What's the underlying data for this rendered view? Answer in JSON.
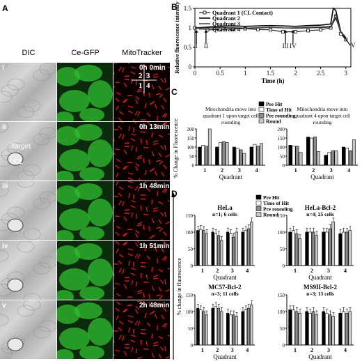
{
  "panels": {
    "A": "A",
    "B": "B",
    "C": "C",
    "D": "D"
  },
  "panelA": {
    "columns": [
      "DIC",
      "Ce-GFP",
      "MitoTracker"
    ],
    "rows": [
      {
        "label": "i",
        "time": "0h 0min"
      },
      {
        "label": "ii",
        "time": "0h 13min"
      },
      {
        "label": "iii",
        "time": "1h 48min"
      },
      {
        "label": "iv",
        "time": "1h 51min"
      },
      {
        "label": "v",
        "time": "2h 48min"
      }
    ],
    "target_label": "Target",
    "cl_label": "CL",
    "quadrant_labels": [
      "2",
      "3",
      "1",
      "4"
    ]
  },
  "colors": {
    "gfp": "#2fbf2f",
    "mito": "#e8261c",
    "dic": "#c4c4c4"
  },
  "chart_data": [
    {
      "id": "B",
      "type": "line",
      "xlabel": "Time (h)",
      "ylabel": "Relative fluorescence intensity",
      "xlim": [
        0,
        3.1
      ],
      "ylim": [
        0,
        1.5
      ],
      "xticks": [
        "0",
        "0.5",
        "1",
        "1.5",
        "2",
        "2.5",
        "3"
      ],
      "yticks": [
        "0",
        "0.5",
        "1",
        "1.5"
      ],
      "legend": [
        "Quadrant 1 (CL Contact)",
        "Quadrant 2",
        "Quadrant 3",
        "Quadrant 4"
      ],
      "legend_position": "top-left",
      "series": [
        {
          "name": "Quadrant 1 (CL Contact)",
          "x": [
            0,
            0.25,
            0.5,
            0.75,
            1.0,
            1.25,
            1.5,
            1.75,
            2.0,
            2.25,
            2.5,
            2.7,
            2.8,
            2.9,
            3.0
          ],
          "y": [
            1.0,
            0.95,
            0.96,
            0.97,
            0.98,
            0.96,
            0.95,
            0.9,
            0.9,
            0.93,
            0.95,
            1.0,
            1.3,
            0.85,
            0.7
          ]
        },
        {
          "name": "Quadrant 2",
          "x": [
            0,
            0.25,
            0.5,
            0.75,
            1.0,
            1.25,
            1.5,
            1.75,
            2.0,
            2.25,
            2.5,
            2.7,
            2.75,
            2.8,
            2.9,
            3.0
          ],
          "y": [
            1.0,
            1.02,
            1.04,
            1.05,
            1.04,
            1.05,
            1.06,
            1.05,
            1.04,
            1.06,
            1.07,
            1.1,
            1.5,
            1.45,
            0.9,
            0.75
          ]
        },
        {
          "name": "Quadrant 3",
          "x": [
            0,
            0.25,
            0.5,
            0.75,
            1.0,
            1.25,
            1.5,
            1.75,
            2.0,
            2.25,
            2.5,
            2.7,
            2.8,
            2.9,
            3.0
          ],
          "y": [
            1.0,
            1.0,
            1.01,
            1.0,
            0.99,
            1.0,
            1.01,
            1.0,
            0.99,
            1.0,
            1.01,
            1.02,
            1.25,
            0.9,
            0.72
          ]
        },
        {
          "name": "Quadrant 4",
          "x": [
            0,
            0.25,
            0.5,
            0.75,
            1.0,
            1.25,
            1.5,
            1.75,
            2.0,
            2.25,
            2.5,
            2.7,
            2.8,
            2.9,
            3.0
          ],
          "y": [
            0.98,
            0.99,
            1.0,
            1.01,
            1.0,
            1.01,
            1.02,
            1.0,
            1.01,
            1.02,
            1.03,
            1.05,
            1.35,
            0.88,
            0.74
          ]
        }
      ],
      "annotations": [
        {
          "text": "I",
          "x": 0.03
        },
        {
          "text": "II",
          "x": 0.22
        },
        {
          "text": "III",
          "x": 1.8
        },
        {
          "text": "IV",
          "x": 1.95
        },
        {
          "text": "V",
          "x": 2.95
        }
      ]
    },
    {
      "id": "C",
      "type": "bar",
      "ylabel": "% Change in Fluorescence",
      "xlabel": "Quadrant",
      "ylim": [
        0,
        200
      ],
      "yticks": [
        "0",
        "50",
        "100",
        "150",
        "200"
      ],
      "categories": [
        "1",
        "2",
        "3",
        "4"
      ],
      "legend": [
        "Pre Hit",
        "Time of Hit",
        "Pre rounding",
        "Round"
      ],
      "legend_position": "top",
      "subcharts": [
        {
          "title": "Mitochondria move into quadrant 1 upon target cell rounding",
          "series": [
            {
              "name": "Pre Hit",
              "values": [
                100,
                100,
                100,
                100
              ]
            },
            {
              "name": "Time of Hit",
              "values": [
                110,
                125,
                95,
                115
              ]
            },
            {
              "name": "Pre rounding",
              "values": [
                105,
                130,
                85,
                105
              ]
            },
            {
              "name": "Round",
              "values": [
                200,
                125,
                65,
                120
              ]
            }
          ]
        },
        {
          "title": "Mitochondria move into quadrant 4 upon target cell rounding",
          "series": [
            {
              "name": "Pre Hit",
              "values": [
                110,
                155,
                55,
                100
              ]
            },
            {
              "name": "Time of Hit",
              "values": [
                105,
                150,
                70,
                95
              ]
            },
            {
              "name": "Pre rounding",
              "values": [
                105,
                155,
                80,
                80
              ]
            },
            {
              "name": "Round",
              "values": [
                70,
                75,
                80,
                140
              ]
            }
          ]
        }
      ]
    },
    {
      "id": "D",
      "type": "bar",
      "ylabel": "% change in fluorescence",
      "xlabel": "Quadrant",
      "ylim": [
        0,
        150
      ],
      "yticks": [
        "0",
        "50",
        "100",
        "150"
      ],
      "categories": [
        "1",
        "2",
        "3",
        "4"
      ],
      "legend": [
        "Pre Hit",
        "Time of Hit",
        "Pre rounding",
        "Round"
      ],
      "legend_position": "top",
      "subcharts": [
        {
          "title": "HeLa",
          "subtitle": "n=1; 6 cells",
          "series": [
            {
              "name": "Pre Hit",
              "values": [
                105,
                100,
                100,
                100
              ]
            },
            {
              "name": "Time of Hit",
              "values": [
                108,
                95,
                95,
                105
              ]
            },
            {
              "name": "Pre rounding",
              "values": [
                105,
                90,
                85,
                110
              ]
            },
            {
              "name": "Round",
              "values": [
                95,
                75,
                100,
                130
              ]
            }
          ]
        },
        {
          "title": "HeLa-Bcl-2",
          "subtitle": "n=4; 25 cells",
          "series": [
            {
              "name": "Pre Hit",
              "values": [
                100,
                100,
                100,
                95
              ]
            },
            {
              "name": "Time of Hit",
              "values": [
                105,
                100,
                100,
                100
              ]
            },
            {
              "name": "Pre rounding",
              "values": [
                95,
                100,
                110,
                100
              ]
            },
            {
              "name": "Round",
              "values": [
                80,
                90,
                130,
                105
              ]
            }
          ]
        },
        {
          "title": "MC57-Bcl-2",
          "subtitle": "n=3; 11 cells",
          "series": [
            {
              "name": "Pre Hit",
              "values": [
                110,
                110,
                95,
                100
              ]
            },
            {
              "name": "Time of Hit",
              "values": [
                105,
                115,
                90,
                105
              ]
            },
            {
              "name": "Pre rounding",
              "values": [
                100,
                110,
                90,
                110
              ]
            },
            {
              "name": "Round",
              "values": [
                90,
                100,
                85,
                120
              ]
            }
          ]
        },
        {
          "title": "MS9II-Bcl-2",
          "subtitle": "n=3; 13 cells",
          "series": [
            {
              "name": "Pre Hit",
              "values": [
                105,
                100,
                100,
                95
              ]
            },
            {
              "name": "Time of Hit",
              "values": [
                105,
                95,
                95,
                100
              ]
            },
            {
              "name": "Pre rounding",
              "values": [
                100,
                100,
                90,
                95
              ]
            },
            {
              "name": "Round",
              "values": [
                95,
                90,
                85,
                100
              ]
            }
          ]
        }
      ]
    }
  ]
}
